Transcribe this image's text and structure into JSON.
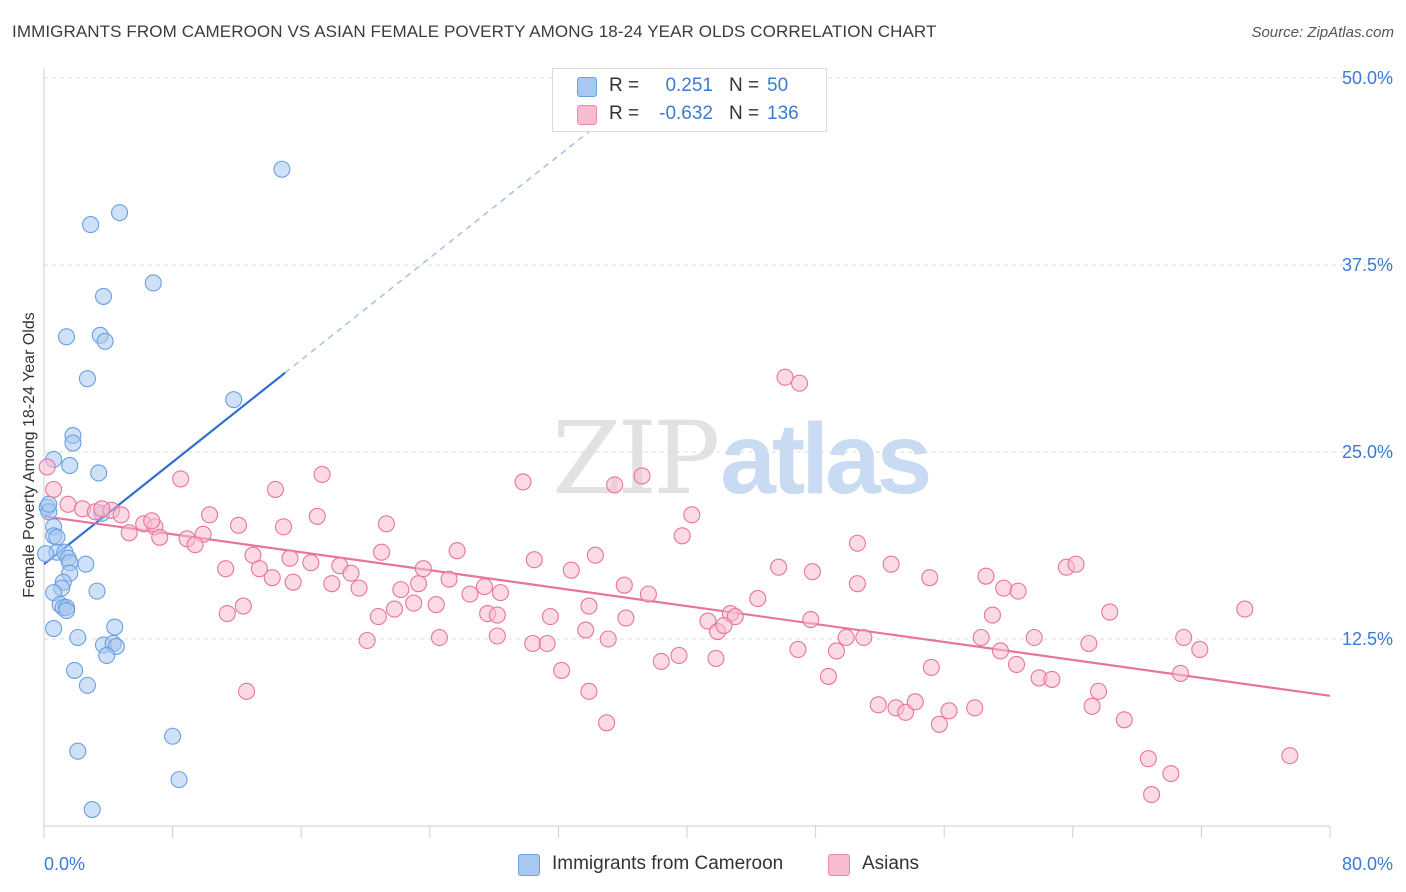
{
  "title": "IMMIGRANTS FROM CAMEROON VS ASIAN FEMALE POVERTY AMONG 18-24 YEAR OLDS CORRELATION CHART",
  "source": "Source: ZipAtlas.com",
  "watermark": {
    "zip": "ZIP",
    "atlas": "atlas"
  },
  "legend": {
    "r_label": "R =",
    "n_label": "N =",
    "rows": [
      {
        "r": "0.251",
        "n": "50",
        "color": "#a8c8f0",
        "border": "#6a9fe0"
      },
      {
        "r": "-0.632",
        "n": "136",
        "color": "#f7bcd0",
        "border": "#e98aab"
      }
    ]
  },
  "chart_data": {
    "type": "scatter",
    "title": "IMMIGRANTS FROM CAMEROON VS ASIAN FEMALE POVERTY AMONG 18-24 YEAR OLDS CORRELATION CHART",
    "xlabel": "",
    "ylabel": "Female Poverty Among 18-24 Year Olds",
    "xlim": [
      0,
      80
    ],
    "ylim": [
      0,
      50
    ],
    "x_tick_labels": [
      "0.0%",
      "80.0%"
    ],
    "y_ticks": [
      12.5,
      25.0,
      37.5,
      50.0
    ],
    "y_tick_labels": [
      "12.5%",
      "25.0%",
      "37.5%",
      "50.0%"
    ],
    "grid": "horizontal dashed",
    "legend_position": "bottom",
    "series": [
      {
        "name": "Immigrants from Cameroon",
        "color": "#6a9fe0",
        "fill": "#a8c8f0",
        "trend": {
          "x0": 0.0,
          "y0": 17.5,
          "x1": 15.0,
          "y1": 30.3,
          "dashed_to_x": 34.0,
          "dashed_to_y": 46.5
        },
        "points": [
          [
            14.8,
            43.9
          ],
          [
            4.7,
            41.0
          ],
          [
            2.9,
            40.2
          ],
          [
            6.8,
            36.3
          ],
          [
            3.7,
            35.4
          ],
          [
            1.4,
            32.7
          ],
          [
            3.5,
            32.8
          ],
          [
            3.8,
            32.4
          ],
          [
            2.7,
            29.9
          ],
          [
            11.8,
            28.5
          ],
          [
            1.8,
            26.1
          ],
          [
            1.8,
            25.6
          ],
          [
            0.6,
            24.5
          ],
          [
            3.4,
            23.6
          ],
          [
            0.2,
            21.3
          ],
          [
            0.3,
            21.0
          ],
          [
            3.6,
            20.9
          ],
          [
            0.6,
            20.0
          ],
          [
            0.6,
            19.4
          ],
          [
            0.8,
            19.3
          ],
          [
            0.8,
            18.3
          ],
          [
            1.3,
            18.3
          ],
          [
            1.5,
            17.9
          ],
          [
            1.6,
            17.6
          ],
          [
            2.6,
            17.5
          ],
          [
            1.6,
            16.9
          ],
          [
            1.2,
            16.3
          ],
          [
            1.1,
            15.9
          ],
          [
            0.6,
            15.6
          ],
          [
            3.3,
            15.7
          ],
          [
            1.0,
            14.8
          ],
          [
            1.2,
            14.6
          ],
          [
            1.4,
            14.6
          ],
          [
            1.4,
            14.4
          ],
          [
            0.6,
            13.2
          ],
          [
            4.4,
            13.3
          ],
          [
            2.1,
            12.6
          ],
          [
            3.7,
            12.1
          ],
          [
            4.3,
            12.2
          ],
          [
            4.5,
            12.0
          ],
          [
            3.9,
            11.4
          ],
          [
            1.9,
            10.4
          ],
          [
            2.7,
            9.4
          ],
          [
            8.0,
            6.0
          ],
          [
            2.1,
            5.0
          ],
          [
            8.4,
            3.1
          ],
          [
            3.0,
            1.1
          ],
          [
            0.3,
            21.5
          ],
          [
            1.6,
            24.1
          ],
          [
            0.1,
            18.2
          ]
        ]
      },
      {
        "name": "Asians",
        "color": "#e8749e",
        "fill": "#f7bcd0",
        "trend": {
          "x0": 0.0,
          "y0": 20.7,
          "x1": 80.0,
          "y1": 8.7
        },
        "points": [
          [
            46.1,
            30.0
          ],
          [
            47.0,
            29.6
          ],
          [
            0.2,
            24.0
          ],
          [
            0.6,
            22.5
          ],
          [
            37.2,
            23.4
          ],
          [
            35.5,
            22.8
          ],
          [
            29.8,
            23.0
          ],
          [
            17.3,
            23.5
          ],
          [
            14.4,
            22.5
          ],
          [
            8.5,
            23.2
          ],
          [
            1.5,
            21.5
          ],
          [
            2.4,
            21.2
          ],
          [
            3.2,
            21.0
          ],
          [
            4.2,
            21.1
          ],
          [
            4.8,
            20.8
          ],
          [
            3.6,
            21.2
          ],
          [
            6.2,
            20.2
          ],
          [
            6.9,
            20.0
          ],
          [
            6.7,
            20.4
          ],
          [
            5.3,
            19.6
          ],
          [
            7.2,
            19.3
          ],
          [
            8.9,
            19.2
          ],
          [
            9.9,
            19.5
          ],
          [
            10.3,
            20.8
          ],
          [
            12.1,
            20.1
          ],
          [
            9.4,
            18.8
          ],
          [
            14.9,
            20.0
          ],
          [
            17.0,
            20.7
          ],
          [
            21.3,
            20.2
          ],
          [
            21.0,
            18.3
          ],
          [
            25.7,
            18.4
          ],
          [
            40.3,
            20.8
          ],
          [
            39.7,
            19.4
          ],
          [
            50.6,
            18.9
          ],
          [
            11.3,
            17.2
          ],
          [
            13.0,
            18.1
          ],
          [
            13.4,
            17.2
          ],
          [
            14.2,
            16.6
          ],
          [
            15.3,
            17.9
          ],
          [
            15.5,
            16.3
          ],
          [
            16.6,
            17.6
          ],
          [
            17.9,
            16.2
          ],
          [
            18.4,
            17.4
          ],
          [
            19.1,
            16.9
          ],
          [
            19.6,
            15.9
          ],
          [
            22.2,
            15.8
          ],
          [
            23.3,
            16.2
          ],
          [
            23.6,
            17.2
          ],
          [
            25.2,
            16.5
          ],
          [
            26.5,
            15.5
          ],
          [
            27.4,
            16.0
          ],
          [
            28.4,
            15.6
          ],
          [
            30.5,
            17.8
          ],
          [
            32.8,
            17.1
          ],
          [
            34.3,
            18.1
          ],
          [
            36.1,
            16.1
          ],
          [
            37.6,
            15.5
          ],
          [
            45.7,
            17.3
          ],
          [
            47.8,
            17.0
          ],
          [
            52.7,
            17.5
          ],
          [
            55.1,
            16.6
          ],
          [
            50.6,
            16.2
          ],
          [
            58.6,
            16.7
          ],
          [
            59.7,
            15.9
          ],
          [
            60.6,
            15.7
          ],
          [
            63.6,
            17.3
          ],
          [
            64.2,
            17.5
          ],
          [
            11.4,
            14.2
          ],
          [
            12.4,
            14.7
          ],
          [
            20.8,
            14.0
          ],
          [
            21.8,
            14.5
          ],
          [
            23.0,
            14.9
          ],
          [
            24.4,
            14.8
          ],
          [
            27.6,
            14.2
          ],
          [
            28.2,
            14.1
          ],
          [
            31.5,
            14.0
          ],
          [
            33.9,
            14.7
          ],
          [
            36.2,
            13.9
          ],
          [
            41.3,
            13.7
          ],
          [
            42.7,
            14.2
          ],
          [
            43.0,
            14.0
          ],
          [
            44.4,
            15.2
          ],
          [
            47.7,
            13.8
          ],
          [
            59.0,
            14.1
          ],
          [
            66.3,
            14.3
          ],
          [
            74.7,
            14.5
          ],
          [
            12.6,
            9.0
          ],
          [
            20.1,
            12.4
          ],
          [
            24.6,
            12.6
          ],
          [
            28.2,
            12.7
          ],
          [
            30.4,
            12.2
          ],
          [
            31.3,
            12.2
          ],
          [
            33.7,
            13.1
          ],
          [
            35.1,
            12.5
          ],
          [
            38.4,
            11.0
          ],
          [
            39.5,
            11.4
          ],
          [
            41.8,
            11.2
          ],
          [
            41.9,
            13.0
          ],
          [
            42.3,
            13.4
          ],
          [
            46.9,
            11.8
          ],
          [
            49.3,
            11.7
          ],
          [
            49.9,
            12.6
          ],
          [
            51.0,
            12.6
          ],
          [
            55.2,
            10.6
          ],
          [
            58.3,
            12.6
          ],
          [
            59.5,
            11.7
          ],
          [
            60.5,
            10.8
          ],
          [
            61.6,
            12.6
          ],
          [
            65.0,
            12.2
          ],
          [
            70.9,
            12.6
          ],
          [
            71.9,
            11.8
          ],
          [
            70.7,
            10.2
          ],
          [
            32.2,
            10.4
          ],
          [
            33.9,
            9.0
          ],
          [
            48.8,
            10.0
          ],
          [
            51.9,
            8.1
          ],
          [
            53.0,
            7.9
          ],
          [
            53.6,
            7.6
          ],
          [
            54.2,
            8.3
          ],
          [
            55.7,
            6.8
          ],
          [
            56.3,
            7.7
          ],
          [
            57.9,
            7.9
          ],
          [
            61.9,
            9.9
          ],
          [
            62.7,
            9.8
          ],
          [
            65.2,
            8.0
          ],
          [
            65.6,
            9.0
          ],
          [
            67.2,
            7.1
          ],
          [
            35.0,
            6.9
          ],
          [
            68.7,
            4.5
          ],
          [
            68.9,
            2.1
          ],
          [
            70.1,
            3.5
          ],
          [
            77.5,
            4.7
          ]
        ]
      }
    ]
  }
}
